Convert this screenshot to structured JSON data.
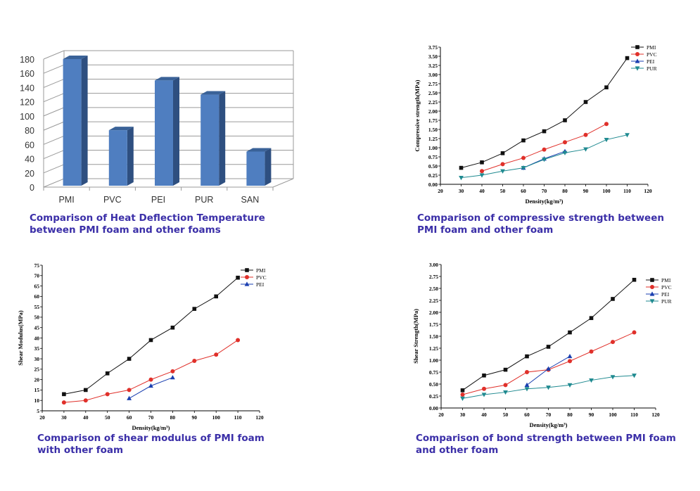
{
  "colors": {
    "bar_front": "#4f7ec0",
    "bar_side": "#2e4f80",
    "bar_top": "#3a6298",
    "grid": "#9a9a9a",
    "caption": "#3b2fa8",
    "PMI": "#111111",
    "PVC": "#e0302a",
    "PEI": "#1a3fb0",
    "PUR": "#1f8a90"
  },
  "captions": {
    "hdt": [
      "Comparison of Heat Deflection Temperature",
      "between PMI foam and other foams"
    ],
    "compressive": [
      "Comparison of compressive strength between",
      "PMI foam and other foam"
    ],
    "shear": [
      "Comparison of shear modulus of PMI foam",
      "with other foam"
    ],
    "bond": [
      "Comparison of bond strength between PMI foam",
      "and other foam"
    ]
  },
  "chart_data": [
    {
      "id": "hdt",
      "type": "bar",
      "categories": [
        "PMI",
        "PVC",
        "PEI",
        "PUR",
        "SAN"
      ],
      "values": [
        180,
        80,
        150,
        130,
        50
      ],
      "ylim": [
        0,
        180
      ],
      "yticks": [
        "0",
        "20",
        "40",
        "60",
        "80",
        "100",
        "120",
        "140",
        "160",
        "180"
      ],
      "grid": true,
      "title": "",
      "xlabel": "",
      "ylabel": ""
    },
    {
      "id": "compressive",
      "type": "line",
      "xlabel": "Density(kg/m³)",
      "ylabel": "Compressive strength(MPa)",
      "xlim": [
        20,
        120
      ],
      "ylim": [
        0,
        3.75
      ],
      "xticks": [
        "20",
        "30",
        "40",
        "50",
        "60",
        "70",
        "80",
        "90",
        "100",
        "110",
        "120"
      ],
      "yticks": [
        "0.00",
        "0.25",
        "0.50",
        "0.75",
        "1.00",
        "1.25",
        "1.50",
        "1.75",
        "2.00",
        "2.25",
        "2.50",
        "2.75",
        "3.00",
        "3.25",
        "3.50",
        "3.75"
      ],
      "legend": "top-right",
      "series": [
        {
          "name": "PMI",
          "marker": "square",
          "x": [
            30,
            40,
            50,
            60,
            70,
            80,
            90,
            100,
            110
          ],
          "y": [
            0.45,
            0.6,
            0.85,
            1.2,
            1.45,
            1.75,
            2.25,
            2.65,
            3.45
          ]
        },
        {
          "name": "PVC",
          "marker": "circle",
          "x": [
            40,
            50,
            60,
            70,
            80,
            90,
            100
          ],
          "y": [
            0.36,
            0.55,
            0.72,
            0.95,
            1.15,
            1.35,
            1.65
          ]
        },
        {
          "name": "PEI",
          "marker": "triangle-up",
          "x": [
            60,
            70,
            80
          ],
          "y": [
            0.45,
            0.7,
            0.9
          ]
        },
        {
          "name": "PUR",
          "marker": "triangle-down",
          "x": [
            30,
            40,
            50,
            60,
            70,
            80,
            90,
            100,
            110
          ],
          "y": [
            0.18,
            0.25,
            0.36,
            0.45,
            0.68,
            0.86,
            0.96,
            1.22,
            1.35
          ]
        }
      ]
    },
    {
      "id": "shear",
      "type": "line",
      "xlabel": "Density(kg/m³)",
      "ylabel": "Shear Modulus(MPa)",
      "xlim": [
        20,
        120
      ],
      "ylim": [
        5,
        75
      ],
      "xticks": [
        "20",
        "30",
        "40",
        "50",
        "60",
        "70",
        "80",
        "90",
        "100",
        "110",
        "120"
      ],
      "yticks": [
        "5",
        "10",
        "15",
        "20",
        "25",
        "30",
        "35",
        "40",
        "45",
        "50",
        "55",
        "60",
        "65",
        "70",
        "75"
      ],
      "legend": "top-right",
      "series": [
        {
          "name": "PMI",
          "marker": "square",
          "x": [
            30,
            40,
            50,
            60,
            70,
            80,
            90,
            100,
            110
          ],
          "y": [
            13,
            15,
            23,
            30,
            39,
            45,
            54,
            60,
            69
          ]
        },
        {
          "name": "PVC",
          "marker": "circle",
          "x": [
            30,
            40,
            50,
            60,
            70,
            80,
            90,
            100,
            110
          ],
          "y": [
            9,
            10,
            13,
            15,
            20,
            24,
            29,
            32,
            39
          ]
        },
        {
          "name": "PEI",
          "marker": "triangle-up",
          "x": [
            60,
            70,
            80
          ],
          "y": [
            11,
            17,
            21
          ]
        }
      ]
    },
    {
      "id": "bond",
      "type": "line",
      "xlabel": "Density(kg/m³)",
      "ylabel": "Shear Strength(MPa)",
      "xlim": [
        20,
        120
      ],
      "ylim": [
        0,
        3.0
      ],
      "xticks": [
        "20",
        "30",
        "40",
        "50",
        "60",
        "70",
        "80",
        "90",
        "100",
        "110",
        "120"
      ],
      "yticks": [
        "0.00",
        "0.25",
        "0.50",
        "0.75",
        "1.00",
        "1.25",
        "1.50",
        "1.75",
        "2.00",
        "2.25",
        "2.50",
        "2.75",
        "3.00"
      ],
      "legend": "top-right",
      "series": [
        {
          "name": "PMI",
          "marker": "square",
          "x": [
            30,
            40,
            50,
            60,
            70,
            80,
            90,
            100,
            110
          ],
          "y": [
            0.37,
            0.68,
            0.8,
            1.08,
            1.28,
            1.58,
            1.88,
            2.28,
            2.68
          ]
        },
        {
          "name": "PVC",
          "marker": "circle",
          "x": [
            30,
            40,
            50,
            60,
            70,
            80,
            90,
            100,
            110
          ],
          "y": [
            0.28,
            0.4,
            0.48,
            0.75,
            0.8,
            0.98,
            1.18,
            1.38,
            1.58
          ]
        },
        {
          "name": "PEI",
          "marker": "triangle-up",
          "x": [
            60,
            70,
            80
          ],
          "y": [
            0.48,
            0.82,
            1.08
          ]
        },
        {
          "name": "PUR",
          "marker": "triangle-down",
          "x": [
            30,
            40,
            50,
            60,
            70,
            80,
            90,
            100,
            110
          ],
          "y": [
            0.2,
            0.28,
            0.33,
            0.4,
            0.43,
            0.48,
            0.58,
            0.65,
            0.68
          ]
        }
      ]
    }
  ]
}
